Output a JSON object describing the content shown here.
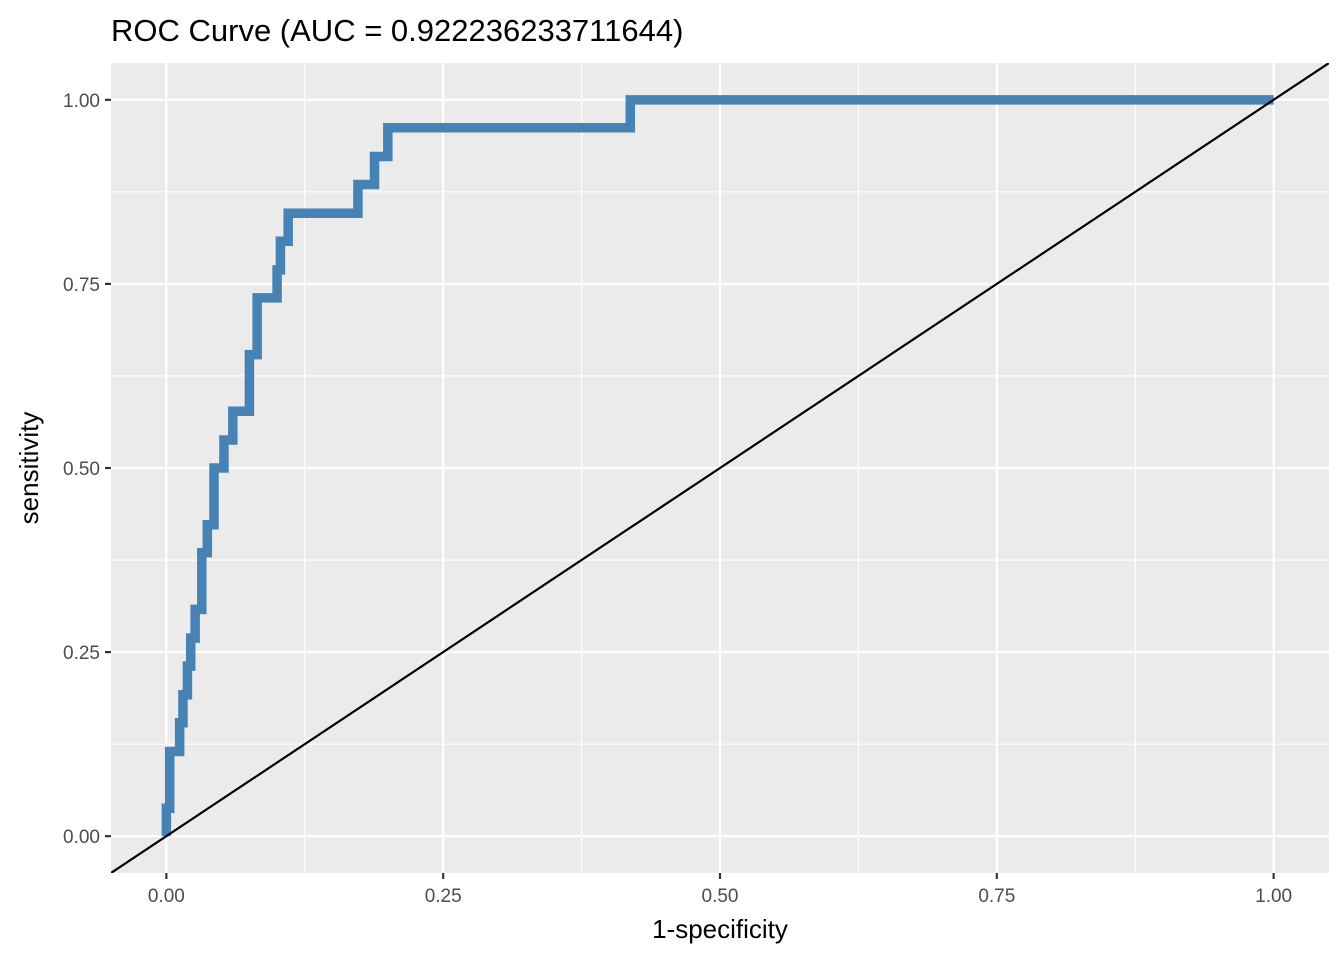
{
  "chart_data": {
    "type": "line",
    "title": "ROC Curve (AUC = 0.922236233711644)",
    "xlabel": "1-specificity",
    "ylabel": "sensitivity",
    "xlim": [
      -0.05,
      1.05
    ],
    "ylim": [
      -0.05,
      1.05
    ],
    "x_ticks": [
      0,
      0.25,
      0.5,
      0.75,
      1
    ],
    "x_tick_labels": [
      "0.00",
      "0.25",
      "0.50",
      "0.75",
      "1.00"
    ],
    "y_ticks": [
      0,
      0.25,
      0.5,
      0.75,
      1
    ],
    "y_tick_labels": [
      "0.00",
      "0.25",
      "0.50",
      "0.75",
      "1.00"
    ],
    "grid": true,
    "colors": {
      "panel_background": "#ebebeb",
      "grid": "#ffffff",
      "roc_line": "#4682b4",
      "reference_line": "#000000"
    },
    "series": [
      {
        "x": [
          0.0,
          0.0,
          0.003,
          0.003,
          0.012,
          0.012,
          0.015,
          0.015,
          0.019,
          0.019,
          0.022,
          0.022,
          0.026,
          0.026,
          0.032,
          0.032,
          0.037,
          0.037,
          0.043,
          0.043,
          0.052,
          0.052,
          0.06,
          0.06,
          0.063,
          0.063,
          0.075,
          0.075,
          0.082,
          0.082,
          0.1,
          0.1,
          0.103,
          0.103,
          0.11,
          0.11,
          0.173,
          0.173,
          0.188,
          0.188,
          0.2,
          0.2,
          0.419,
          0.419,
          1.0
        ],
        "y": [
          0.0,
          0.038,
          0.038,
          0.115,
          0.115,
          0.154,
          0.154,
          0.192,
          0.192,
          0.231,
          0.231,
          0.269,
          0.269,
          0.308,
          0.308,
          0.385,
          0.385,
          0.423,
          0.423,
          0.5,
          0.5,
          0.538,
          0.538,
          0.577,
          0.577,
          0.577,
          0.577,
          0.654,
          0.654,
          0.731,
          0.731,
          0.769,
          0.769,
          0.808,
          0.808,
          0.846,
          0.846,
          0.885,
          0.885,
          0.923,
          0.923,
          0.962,
          0.962,
          1.0,
          1.0
        ]
      },
      {
        "x": [
          -0.05,
          1.05
        ],
        "y": [
          -0.05,
          1.05
        ]
      }
    ]
  }
}
